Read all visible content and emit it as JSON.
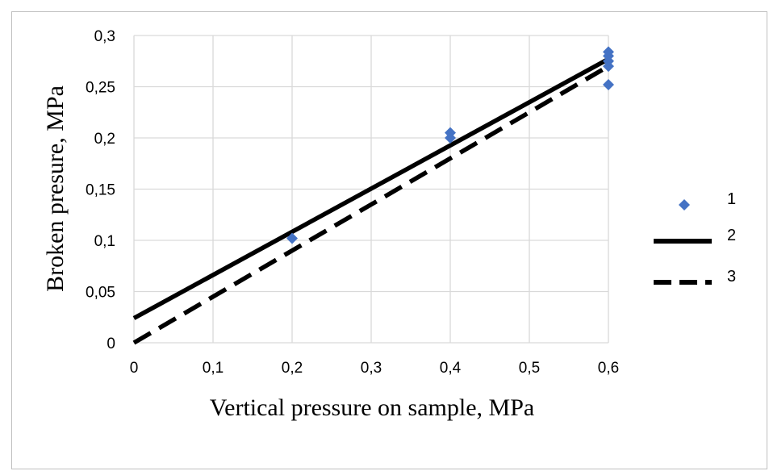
{
  "chart_data": {
    "type": "scatter",
    "xlabel": "Vertical pressure on sample, MPa",
    "ylabel": "Broken presure, MPa",
    "xlim": [
      0,
      0.6
    ],
    "ylim": [
      0,
      0.3
    ],
    "x_ticks": [
      "0",
      "0,1",
      "0,2",
      "0,3",
      "0,4",
      "0,5",
      "0,6"
    ],
    "y_ticks": [
      "0",
      "0,05",
      "0,1",
      "0,15",
      "0,2",
      "0,25",
      "0,3"
    ],
    "grid": true,
    "legend_position": "right",
    "series": [
      {
        "name": "1",
        "kind": "scatter",
        "marker": "diamond",
        "color": "#4472C4",
        "points": [
          [
            0.2,
            0.102
          ],
          [
            0.4,
            0.2
          ],
          [
            0.4,
            0.205
          ],
          [
            0.6,
            0.252
          ],
          [
            0.6,
            0.27
          ],
          [
            0.6,
            0.275
          ],
          [
            0.6,
            0.28
          ],
          [
            0.6,
            0.284
          ]
        ]
      },
      {
        "name": "2",
        "kind": "line",
        "style": "solid",
        "color": "#000000",
        "points": [
          [
            0,
            0.024
          ],
          [
            0.6,
            0.277
          ]
        ]
      },
      {
        "name": "3",
        "kind": "line",
        "style": "dashed",
        "color": "#000000",
        "points": [
          [
            0,
            0
          ],
          [
            0.6,
            0.27
          ]
        ]
      }
    ]
  }
}
